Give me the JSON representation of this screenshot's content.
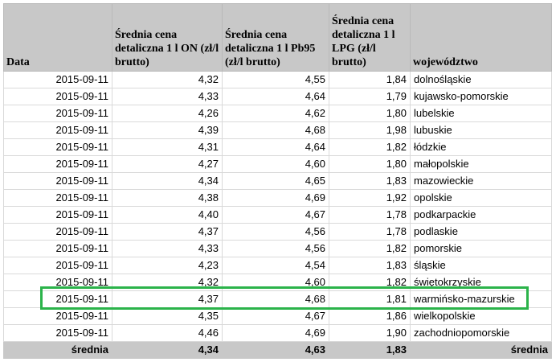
{
  "headers": [
    "Data",
    "Średnia cena detaliczna 1 l ON (zł/l brutto)",
    "Średnia cena detaliczna 1 l Pb95 (zł/l brutto)",
    "Średnia cena detaliczna 1 l LPG (zł/l brutto)",
    "województwo"
  ],
  "rows": [
    [
      "2015-09-11",
      "4,32",
      "4,55",
      "1,84",
      "dolnośląskie"
    ],
    [
      "2015-09-11",
      "4,33",
      "4,64",
      "1,79",
      "kujawsko-pomorskie"
    ],
    [
      "2015-09-11",
      "4,26",
      "4,62",
      "1,80",
      "lubelskie"
    ],
    [
      "2015-09-11",
      "4,39",
      "4,68",
      "1,98",
      "lubuskie"
    ],
    [
      "2015-09-11",
      "4,31",
      "4,64",
      "1,82",
      "łódzkie"
    ],
    [
      "2015-09-11",
      "4,27",
      "4,60",
      "1,80",
      "małopolskie"
    ],
    [
      "2015-09-11",
      "4,34",
      "4,65",
      "1,83",
      "mazowieckie"
    ],
    [
      "2015-09-11",
      "4,38",
      "4,69",
      "1,92",
      "opolskie"
    ],
    [
      "2015-09-11",
      "4,40",
      "4,67",
      "1,78",
      "podkarpackie"
    ],
    [
      "2015-09-11",
      "4,37",
      "4,56",
      "1,78",
      "podlaskie"
    ],
    [
      "2015-09-11",
      "4,33",
      "4,56",
      "1,82",
      "pomorskie"
    ],
    [
      "2015-09-11",
      "4,23",
      "4,54",
      "1,83",
      "śląskie"
    ],
    [
      "2015-09-11",
      "4,32",
      "4,60",
      "1,82",
      "świętokrzyskie"
    ],
    [
      "2015-09-11",
      "4,37",
      "4,68",
      "1,81",
      "warmińsko-mazurskie"
    ],
    [
      "2015-09-11",
      "4,35",
      "4,67",
      "1,86",
      "wielkopolskie"
    ],
    [
      "2015-09-11",
      "4,46",
      "4,69",
      "1,90",
      "zachodniopomorskie"
    ]
  ],
  "footer": [
    "średnia",
    "4,34",
    "4,63",
    "1,83",
    "średnia"
  ],
  "highlight_color": "#2bb34a",
  "highlighted_row": "warmińsko-mazurskie"
}
